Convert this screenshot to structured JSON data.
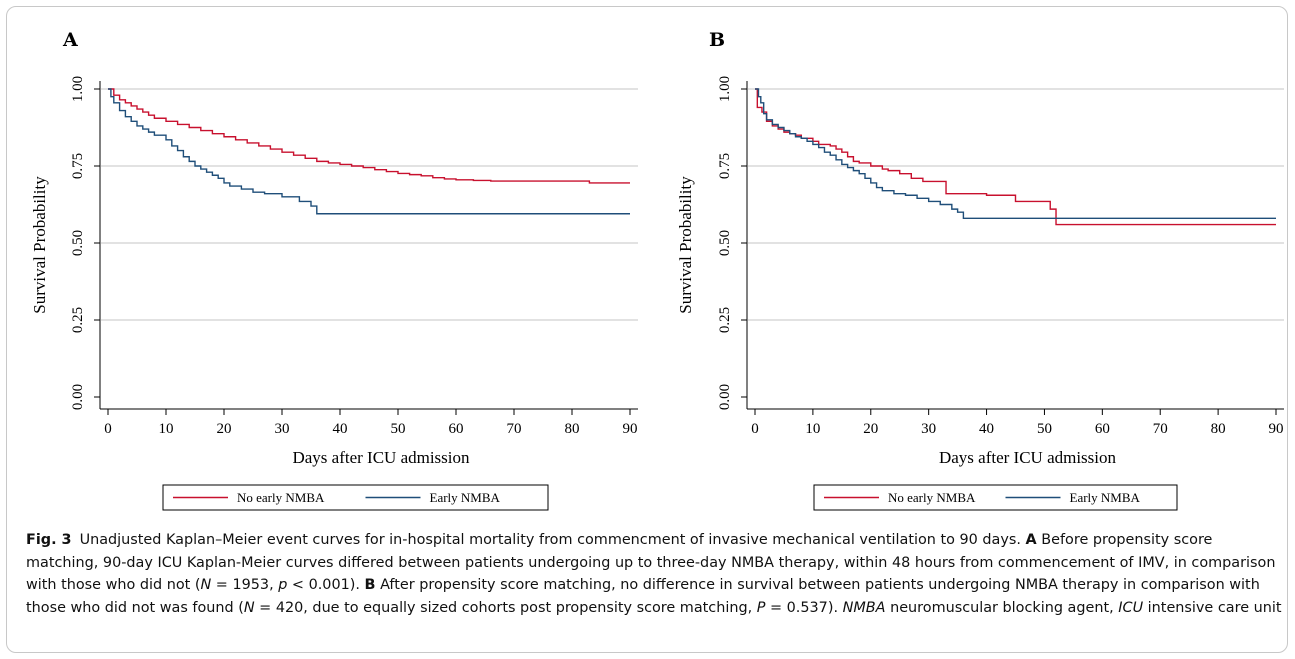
{
  "chart_data": [
    {
      "type": "line",
      "panel_letter": "A",
      "xlabel": "Days after ICU admission",
      "ylabel": "Survival Probability",
      "xlim": [
        0,
        90
      ],
      "ylim": [
        0,
        1
      ],
      "xticks": [
        "0",
        "10",
        "20",
        "30",
        "40",
        "50",
        "60",
        "70",
        "80",
        "90"
      ],
      "yticks": [
        "0.00",
        "0.25",
        "0.50",
        "0.75",
        "1.00"
      ],
      "grid": true,
      "legend_position": "bottom",
      "step": true,
      "series": [
        {
          "name": "No early NMBA",
          "color": "#c8102e",
          "points": [
            [
              0,
              1.0
            ],
            [
              1,
              0.98
            ],
            [
              2,
              0.965
            ],
            [
              3,
              0.955
            ],
            [
              4,
              0.945
            ],
            [
              5,
              0.935
            ],
            [
              6,
              0.925
            ],
            [
              7,
              0.915
            ],
            [
              8,
              0.905
            ],
            [
              10,
              0.895
            ],
            [
              12,
              0.885
            ],
            [
              14,
              0.875
            ],
            [
              16,
              0.865
            ],
            [
              18,
              0.855
            ],
            [
              20,
              0.845
            ],
            [
              22,
              0.835
            ],
            [
              24,
              0.825
            ],
            [
              26,
              0.815
            ],
            [
              28,
              0.805
            ],
            [
              30,
              0.795
            ],
            [
              32,
              0.785
            ],
            [
              34,
              0.775
            ],
            [
              36,
              0.765
            ],
            [
              38,
              0.76
            ],
            [
              40,
              0.755
            ],
            [
              42,
              0.75
            ],
            [
              44,
              0.745
            ],
            [
              46,
              0.738
            ],
            [
              48,
              0.732
            ],
            [
              50,
              0.726
            ],
            [
              52,
              0.722
            ],
            [
              54,
              0.718
            ],
            [
              56,
              0.712
            ],
            [
              58,
              0.708
            ],
            [
              60,
              0.705
            ],
            [
              63,
              0.703
            ],
            [
              66,
              0.701
            ],
            [
              83,
              0.695
            ],
            [
              90,
              0.695
            ]
          ]
        },
        {
          "name": "Early NMBA",
          "color": "#1f4e79",
          "points": [
            [
              0,
              1.0
            ],
            [
              0.5,
              0.975
            ],
            [
              1,
              0.955
            ],
            [
              2,
              0.93
            ],
            [
              3,
              0.91
            ],
            [
              4,
              0.895
            ],
            [
              5,
              0.88
            ],
            [
              6,
              0.87
            ],
            [
              7,
              0.86
            ],
            [
              8,
              0.85
            ],
            [
              10,
              0.835
            ],
            [
              11,
              0.815
            ],
            [
              12,
              0.8
            ],
            [
              13,
              0.78
            ],
            [
              14,
              0.765
            ],
            [
              15,
              0.75
            ],
            [
              16,
              0.74
            ],
            [
              17,
              0.73
            ],
            [
              18,
              0.72
            ],
            [
              19,
              0.71
            ],
            [
              20,
              0.695
            ],
            [
              21,
              0.685
            ],
            [
              23,
              0.675
            ],
            [
              25,
              0.665
            ],
            [
              27,
              0.66
            ],
            [
              30,
              0.65
            ],
            [
              33,
              0.635
            ],
            [
              35,
              0.62
            ],
            [
              36,
              0.595
            ],
            [
              90,
              0.595
            ]
          ]
        }
      ]
    },
    {
      "type": "line",
      "panel_letter": "B",
      "xlabel": "Days after ICU admission",
      "ylabel": "Survival Probability",
      "xlim": [
        0,
        90
      ],
      "ylim": [
        0,
        1
      ],
      "xticks": [
        "0",
        "10",
        "20",
        "30",
        "40",
        "50",
        "60",
        "70",
        "80",
        "90"
      ],
      "yticks": [
        "0.00",
        "0.25",
        "0.50",
        "0.75",
        "1.00"
      ],
      "grid": true,
      "legend_position": "bottom",
      "step": true,
      "series": [
        {
          "name": "No early NMBA",
          "color": "#c8102e",
          "points": [
            [
              0,
              1.0
            ],
            [
              0.4,
              0.94
            ],
            [
              1.2,
              0.925
            ],
            [
              2,
              0.895
            ],
            [
              3,
              0.88
            ],
            [
              4,
              0.87
            ],
            [
              5,
              0.86
            ],
            [
              6,
              0.855
            ],
            [
              7,
              0.85
            ],
            [
              8,
              0.84
            ],
            [
              10,
              0.83
            ],
            [
              11,
              0.82
            ],
            [
              13,
              0.815
            ],
            [
              14,
              0.805
            ],
            [
              15,
              0.795
            ],
            [
              16,
              0.78
            ],
            [
              17,
              0.765
            ],
            [
              18,
              0.76
            ],
            [
              20,
              0.75
            ],
            [
              22,
              0.74
            ],
            [
              23,
              0.735
            ],
            [
              25,
              0.725
            ],
            [
              27,
              0.71
            ],
            [
              29,
              0.7
            ],
            [
              33,
              0.66
            ],
            [
              40,
              0.655
            ],
            [
              45,
              0.635
            ],
            [
              49,
              0.635
            ],
            [
              51,
              0.61
            ],
            [
              52,
              0.56
            ],
            [
              90,
              0.56
            ]
          ]
        },
        {
          "name": "Early NMBA",
          "color": "#1f4e79",
          "points": [
            [
              0,
              1.0
            ],
            [
              0.6,
              0.975
            ],
            [
              1,
              0.955
            ],
            [
              1.5,
              0.92
            ],
            [
              2,
              0.9
            ],
            [
              3,
              0.885
            ],
            [
              4,
              0.875
            ],
            [
              5,
              0.865
            ],
            [
              6,
              0.855
            ],
            [
              7,
              0.845
            ],
            [
              8,
              0.84
            ],
            [
              9,
              0.83
            ],
            [
              10,
              0.82
            ],
            [
              11,
              0.81
            ],
            [
              12,
              0.795
            ],
            [
              13,
              0.785
            ],
            [
              14,
              0.77
            ],
            [
              15,
              0.755
            ],
            [
              16,
              0.745
            ],
            [
              17,
              0.735
            ],
            [
              18,
              0.725
            ],
            [
              19,
              0.71
            ],
            [
              20,
              0.695
            ],
            [
              21,
              0.68
            ],
            [
              22,
              0.67
            ],
            [
              24,
              0.66
            ],
            [
              26,
              0.655
            ],
            [
              28,
              0.645
            ],
            [
              30,
              0.635
            ],
            [
              32,
              0.625
            ],
            [
              34,
              0.61
            ],
            [
              35,
              0.6
            ],
            [
              36,
              0.58
            ],
            [
              90,
              0.58
            ]
          ]
        }
      ]
    }
  ],
  "caption": {
    "fig_label": "Fig. 3",
    "seg1": "Unadjusted Kaplan–Meier event curves for in-hospital mortality from commencment of invasive mechanical ventilation to 90 days. ",
    "seg2_bold": "A",
    "seg3": " Before propensity score matching, 90-day ICU Kaplan-Meier curves differed between patients undergoing up to three-day NMBA therapy, within 48 hours from commencement of IMV, in comparison with those who did not (",
    "n1_italic": "N",
    "seg4": " = 1953, ",
    "p1_italic": "p",
    "seg5": " < 0.001). ",
    "seg6_bold": "B",
    "seg7": " After propensity score matching, no difference in survival between patients undergoing NMBA therapy in comparison with those who did not was found (",
    "n2_italic": "N",
    "seg8": " = 420, due to equally sized cohorts post propensity score matching, ",
    "p2_italic": "P",
    "seg9": " = 0.537). ",
    "abbr1_italic": "NMBA",
    "seg10": " neuromuscular blocking agent, ",
    "abbr2_italic": "ICU",
    "seg11": " intensive care unit"
  }
}
